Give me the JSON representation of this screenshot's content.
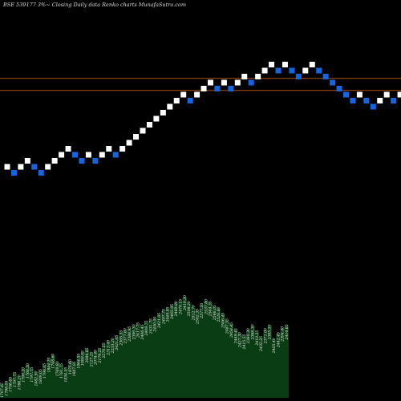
{
  "page": {
    "title": "BSE 539177 3%~  Closing Daily data  Renko  charts MunafaSutra.com"
  },
  "chart_data": {
    "type": "renko",
    "title": "BSE 539177 3%~  Closing Daily data  Renko  charts MunafaSutra.com",
    "xlabel": "",
    "ylabel": "",
    "colors": {
      "background": "#000000",
      "up_brick": "#ffffff",
      "down_brick": "#1565e0",
      "reference_line": "#b0510e",
      "volume_fill": "#0b3d14",
      "volume_label": "#f0f0f0"
    },
    "brick_size_steps": 1,
    "bricks": [
      {
        "d": "up",
        "level": 1
      },
      {
        "d": "down",
        "level": 0
      },
      {
        "d": "up",
        "level": 1
      },
      {
        "d": "up",
        "level": 2
      },
      {
        "d": "down",
        "level": 1
      },
      {
        "d": "down",
        "level": 0
      },
      {
        "d": "up",
        "level": 1
      },
      {
        "d": "up",
        "level": 2
      },
      {
        "d": "up",
        "level": 3
      },
      {
        "d": "up",
        "level": 4
      },
      {
        "d": "down",
        "level": 3
      },
      {
        "d": "down",
        "level": 2
      },
      {
        "d": "up",
        "level": 3
      },
      {
        "d": "down",
        "level": 2
      },
      {
        "d": "up",
        "level": 3
      },
      {
        "d": "up",
        "level": 4
      },
      {
        "d": "down",
        "level": 3
      },
      {
        "d": "up",
        "level": 4
      },
      {
        "d": "up",
        "level": 5
      },
      {
        "d": "up",
        "level": 6
      },
      {
        "d": "up",
        "level": 7
      },
      {
        "d": "up",
        "level": 8
      },
      {
        "d": "up",
        "level": 9
      },
      {
        "d": "up",
        "level": 10
      },
      {
        "d": "up",
        "level": 11
      },
      {
        "d": "up",
        "level": 12
      },
      {
        "d": "up",
        "level": 13
      },
      {
        "d": "down",
        "level": 12
      },
      {
        "d": "up",
        "level": 13
      },
      {
        "d": "up",
        "level": 14
      },
      {
        "d": "up",
        "level": 15
      },
      {
        "d": "down",
        "level": 14
      },
      {
        "d": "up",
        "level": 15
      },
      {
        "d": "down",
        "level": 14
      },
      {
        "d": "up",
        "level": 15
      },
      {
        "d": "up",
        "level": 16
      },
      {
        "d": "down",
        "level": 15
      },
      {
        "d": "up",
        "level": 16
      },
      {
        "d": "up",
        "level": 17
      },
      {
        "d": "up",
        "level": 18
      },
      {
        "d": "down",
        "level": 17
      },
      {
        "d": "up",
        "level": 18
      },
      {
        "d": "down",
        "level": 17
      },
      {
        "d": "down",
        "level": 16
      },
      {
        "d": "up",
        "level": 17
      },
      {
        "d": "up",
        "level": 18
      },
      {
        "d": "down",
        "level": 17
      },
      {
        "d": "down",
        "level": 16
      },
      {
        "d": "down",
        "level": 15
      },
      {
        "d": "down",
        "level": 14
      },
      {
        "d": "down",
        "level": 13
      },
      {
        "d": "down",
        "level": 12
      },
      {
        "d": "up",
        "level": 13
      },
      {
        "d": "down",
        "level": 12
      },
      {
        "d": "down",
        "level": 11
      },
      {
        "d": "up",
        "level": 12
      },
      {
        "d": "up",
        "level": 13
      },
      {
        "d": "down",
        "level": 12
      },
      {
        "d": "up",
        "level": 13
      }
    ],
    "reference_lines": [
      {
        "label": "upper",
        "level": 15.7
      },
      {
        "label": "lower",
        "level": 13.7
      }
    ],
    "volume": [
      14,
      16,
      20,
      25,
      22,
      30,
      34,
      30,
      26,
      28,
      34,
      40,
      44,
      36,
      34,
      30,
      38,
      36,
      44,
      47,
      50,
      46,
      48,
      50,
      55,
      58,
      60,
      63,
      68,
      70,
      72,
      74,
      76,
      74,
      78,
      80,
      82,
      86,
      90,
      92,
      95,
      98,
      100,
      104,
      98,
      94,
      90,
      96,
      100,
      98,
      94,
      92,
      86,
      80,
      76,
      70,
      66,
      64,
      70,
      74,
      68,
      62,
      70,
      74,
      60,
      66,
      72,
      74
    ],
    "volume_labels": [
      "1707.45",
      "1788.05",
      "1756.65",
      "1797.75",
      "1786.20",
      "1790.20",
      "1766.50",
      "1797.75",
      "1882.90",
      "1809.05",
      "1796.05",
      "1844.25",
      "1748.60",
      "1769.80",
      "1781.75",
      "1834.55",
      "1875.60",
      "1887.05",
      "1964.55",
      "1999.05",
      "2084.85",
      "2127.25",
      "2074.40",
      "2179.25",
      "2270.55",
      "2313.40",
      "2233.20",
      "2421.05",
      "2365.35",
      "2377.60",
      "2388.95",
      "2390.30",
      "2417.75",
      "2406.45",
      "2409.75",
      "2431.75",
      "2450.05",
      "2421.05",
      "2497.75",
      "2449.95",
      "2465.95",
      "2469.80",
      "2479.15",
      "2419.30",
      "2508.20",
      "2512.70",
      "2502.35",
      "2577.20",
      "2537.80",
      "2564.35",
      "2566.05",
      "2526.80",
      "2506.45",
      "2487.55",
      "2458.45",
      "2449.45",
      "2427.30",
      "2415.55",
      "2380.30",
      "2366.30",
      "2410.25",
      "2432.25",
      "2371.00",
      "2385.55",
      "2405.40",
      "2442.45",
      "2394.40",
      "2414.65"
    ],
    "ylim_levels": [
      -1,
      21
    ],
    "grid": false,
    "legend": "none"
  }
}
